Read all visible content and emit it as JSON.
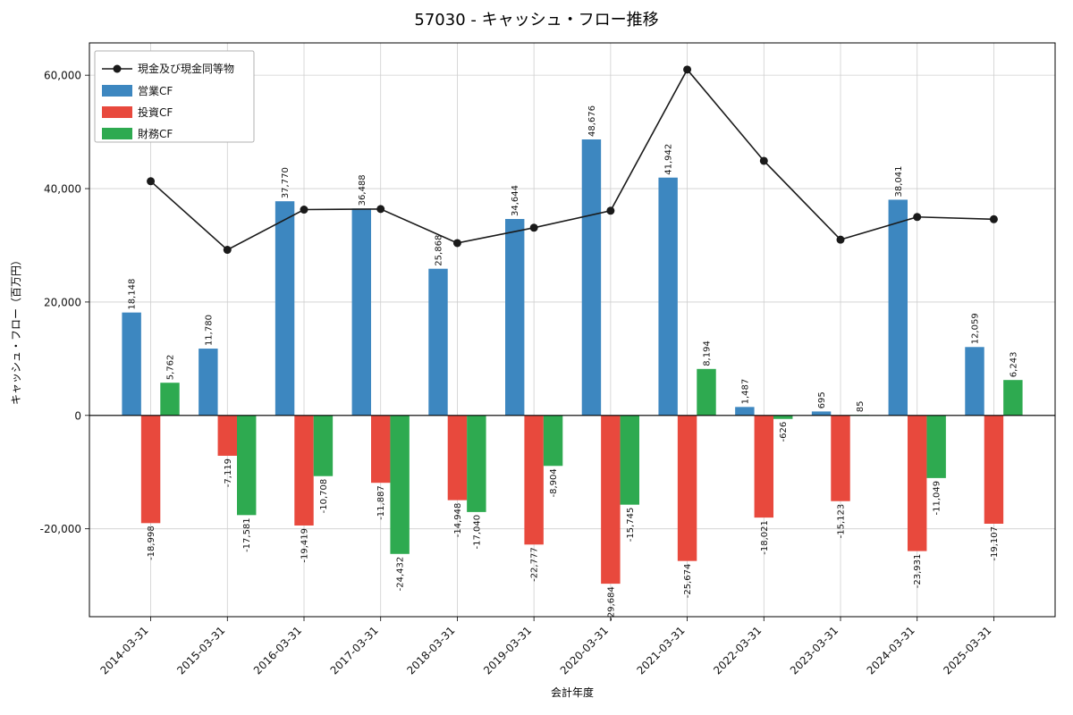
{
  "chart_data": {
    "type": "bar",
    "subtype": "grouped-bars-with-line",
    "title": "57030 - キャッシュ・フロー推移",
    "xlabel": "会計年度",
    "ylabel": "キャッシュ・フロー（百万円）",
    "categories": [
      "2014-03-31",
      "2015-03-31",
      "2016-03-31",
      "2017-03-31",
      "2018-03-31",
      "2019-03-31",
      "2020-03-31",
      "2021-03-31",
      "2022-03-31",
      "2023-03-31",
      "2024-03-31",
      "2025-03-31"
    ],
    "bar_series": [
      {
        "name": "営業CF",
        "color": "#3d87c0",
        "values": [
          18148,
          11780,
          37770,
          36488,
          25868,
          34644,
          48676,
          41942,
          1487,
          695,
          38041,
          12059
        ]
      },
      {
        "name": "投資CF",
        "color": "#e8493d",
        "values": [
          -18998,
          -7119,
          -19419,
          -11887,
          -14948,
          -22777,
          -29684,
          -25674,
          -18021,
          -15123,
          -23931,
          -19107
        ]
      },
      {
        "name": "財務CF",
        "color": "#2eaa50",
        "values": [
          5762,
          -17581,
          -10708,
          -24432,
          -17040,
          -8904,
          -15745,
          8194,
          -626,
          85,
          -11049,
          6243
        ]
      }
    ],
    "line_series": {
      "name": "現金及び現金同等物",
      "color": "#1a1a1a",
      "values": [
        41300,
        29200,
        36300,
        36400,
        30400,
        33100,
        36100,
        61000,
        44900,
        31000,
        35000,
        34600
      ]
    },
    "ylim": [
      -35500,
      65700
    ],
    "yticks": [
      -20000,
      0,
      20000,
      40000,
      60000
    ],
    "grid": true,
    "legend_position": "upper left"
  }
}
